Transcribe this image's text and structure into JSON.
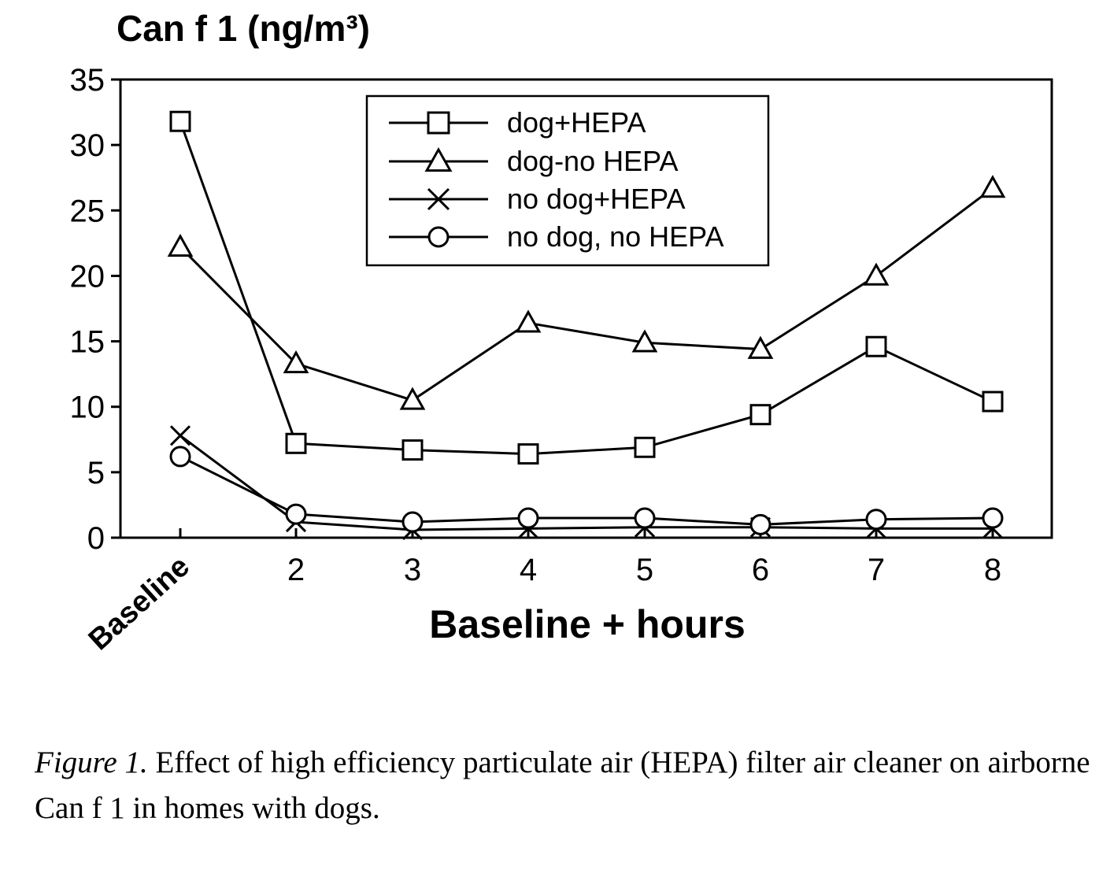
{
  "chart_data": {
    "type": "line",
    "ylabel": "Can f 1 (ng/m³)",
    "xlabel": "Baseline + hours",
    "categories": [
      "Baseline",
      "2",
      "3",
      "4",
      "5",
      "6",
      "7",
      "8"
    ],
    "ylim": [
      0,
      35
    ],
    "yticks": [
      0,
      5,
      10,
      15,
      20,
      25,
      30,
      35
    ],
    "legend_position": "top-center",
    "grid": false,
    "series": [
      {
        "name": "dog+HEPA",
        "marker": "square",
        "values": [
          31.8,
          7.2,
          6.7,
          6.4,
          6.9,
          9.4,
          14.6,
          10.4
        ]
      },
      {
        "name": "dog-no HEPA",
        "marker": "triangle",
        "values": [
          22.2,
          13.3,
          10.5,
          16.4,
          14.9,
          14.4,
          20.0,
          26.7
        ]
      },
      {
        "name": "no dog+HEPA",
        "marker": "x",
        "values": [
          7.8,
          1.2,
          0.6,
          0.7,
          0.8,
          0.8,
          0.7,
          0.7
        ]
      },
      {
        "name": "no dog, no HEPA",
        "marker": "circle",
        "values": [
          6.2,
          1.8,
          1.2,
          1.5,
          1.5,
          1.0,
          1.4,
          1.5
        ]
      }
    ]
  },
  "caption": {
    "figure_label": "Figure 1.",
    "text": "Effect of high efficiency particulate air (HEPA) filter air cleaner on airborne Can f 1 in homes with dogs."
  }
}
